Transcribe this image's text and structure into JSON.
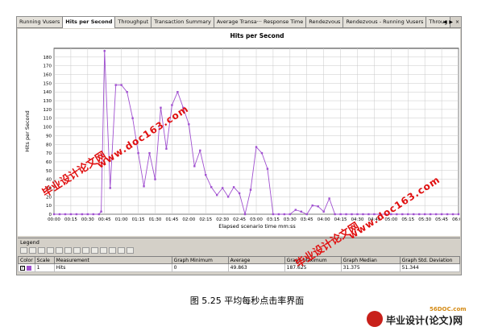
{
  "tabs": [
    {
      "label": "Running Vusers"
    },
    {
      "label": "Hits per Second"
    },
    {
      "label": "Throughput"
    },
    {
      "label": "Transaction Summary"
    },
    {
      "label": "Average Transa··· Response Time"
    },
    {
      "label": "Rendezvous"
    },
    {
      "label": "Rendezvous - Running Vusers"
    },
    {
      "label": "Throug"
    }
  ],
  "tab_arrows": {
    "left": "◀",
    "right": "▶",
    "close": "×"
  },
  "chart_data": {
    "type": "line",
    "title": "Hits per Second",
    "xlabel": "Elapsed scenario time mm:ss",
    "ylabel": "Hits per Second",
    "ylim": [
      0,
      190
    ],
    "yticks": [
      0,
      10,
      20,
      30,
      40,
      50,
      60,
      70,
      80,
      90,
      100,
      110,
      120,
      130,
      140,
      150,
      160,
      170,
      180
    ],
    "xticks": [
      "00:00",
      "00:15",
      "00:30",
      "00:45",
      "01:00",
      "01:15",
      "01:30",
      "01:45",
      "02:00",
      "02:15",
      "02:30",
      "02:45",
      "03:00",
      "03:15",
      "03:30",
      "03:45",
      "04:00",
      "04:15",
      "04:30",
      "04:45",
      "05:00",
      "05:15",
      "05:30",
      "05:45",
      "06:00"
    ],
    "grid": true,
    "series": [
      {
        "name": "Hits",
        "color": "#a050d0",
        "x_seconds": [
          0,
          5,
          10,
          15,
          20,
          25,
          30,
          35,
          40,
          42,
          45,
          50,
          55,
          60,
          65,
          70,
          75,
          80,
          85,
          90,
          95,
          100,
          105,
          110,
          115,
          120,
          125,
          130,
          135,
          140,
          145,
          150,
          155,
          160,
          165,
          170,
          175,
          180,
          185,
          190,
          195,
          200,
          205,
          210,
          215,
          220,
          225,
          230,
          235,
          240,
          245,
          250,
          255,
          260,
          265,
          270,
          275,
          280,
          285,
          290,
          295,
          300,
          305,
          310,
          315,
          320,
          325,
          330,
          335,
          340,
          345,
          350,
          355,
          360
        ],
        "values": [
          0,
          0,
          0,
          0,
          0,
          0,
          0,
          0,
          0,
          3,
          187,
          30,
          148,
          148,
          140,
          110,
          70,
          32,
          70,
          40,
          122,
          75,
          125,
          140,
          122,
          103,
          55,
          73,
          45,
          31,
          22,
          30,
          20,
          31,
          24,
          0,
          28,
          77,
          70,
          52,
          0,
          0,
          0,
          0,
          5,
          3,
          0,
          10,
          9,
          3,
          18,
          0,
          0,
          0,
          0,
          0,
          0,
          0,
          0,
          0,
          0,
          0,
          0,
          0,
          0,
          0,
          0,
          0,
          0,
          0,
          0,
          0,
          0,
          0
        ]
      }
    ]
  },
  "legend": {
    "title": "Legend",
    "toolbar_icons": [
      "filter-icon",
      "columns-icon",
      "sort-icon",
      "find-icon",
      "funnel-icon",
      "copy-icon",
      "paste-icon",
      "config-icon",
      "print-icon",
      "export-icon",
      "table-icon",
      "chart-icon",
      "grid-icon"
    ],
    "columns": [
      "Color",
      "Scale",
      "Measurement",
      "Graph Minimum",
      "Average",
      "Graph Maximum",
      "Graph Median",
      "Graph Std. Deviation"
    ],
    "rows": [
      {
        "scale": "1",
        "measurement": "Hits",
        "graph_minimum": "0",
        "average": "49.863",
        "graph_maximum": "187.625",
        "graph_median": "31.375",
        "graph_std_deviation": "51.344"
      }
    ]
  },
  "caption": "图 5.25  平均每秒点击率界面",
  "watermarks": {
    "text1": "毕业设计论文网",
    "url1": "www.doc163.com",
    "text2": "毕业设计论文网",
    "url2": "www.doc163.com"
  },
  "logo": {
    "url": "56DOC.com",
    "text": "毕业设计(论文)网"
  }
}
